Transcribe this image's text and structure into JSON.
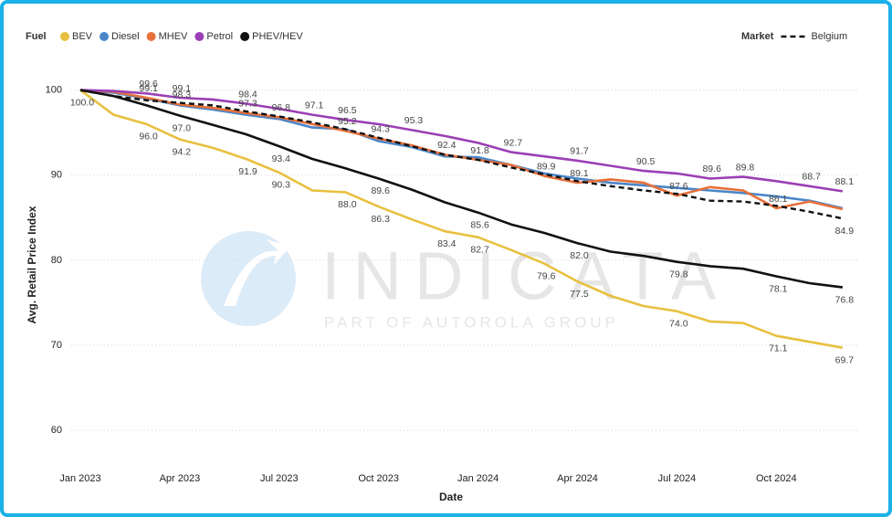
{
  "chart_data": {
    "type": "line",
    "xlabel": "Date",
    "ylabel": "Avg. Retail Price Index",
    "legend_titles": [
      "Fuel",
      "Market"
    ],
    "watermark": {
      "brand": "INDICATA",
      "tagline": "PART OF AUTOROLA GROUP"
    },
    "categories": [
      "Jan 2023",
      null,
      null,
      "Apr 2023",
      null,
      null,
      "Jul 2023",
      null,
      null,
      "Oct 2023",
      null,
      null,
      "Jan 2024",
      null,
      null,
      "Apr 2024",
      null,
      null,
      "Jul 2024",
      null,
      null,
      "Oct 2024",
      null,
      null
    ],
    "ylim": [
      57,
      102
    ],
    "yticks": [
      60,
      70,
      80,
      90,
      100
    ],
    "grid": true,
    "series": [
      {
        "name": "BEV",
        "color": "#e8c040",
        "legend_group": 0,
        "dash": false,
        "values": [
          100,
          97.1,
          96.0,
          94.2,
          93.2,
          91.9,
          90.3,
          88.2,
          88.0,
          86.3,
          84.8,
          83.4,
          82.7,
          81.2,
          79.6,
          77.5,
          75.8,
          74.6,
          74.0,
          72.8,
          72.6,
          71.1,
          70.4,
          69.7
        ],
        "value_labels": [
          "100.0",
          null,
          "96.0",
          "94.2",
          null,
          "91.9",
          "90.3",
          null,
          "88.0",
          "86.3",
          null,
          "83.4",
          "82.7",
          null,
          "79.6",
          "77.5",
          null,
          null,
          "74.0",
          null,
          null,
          "71.1",
          null,
          "69.7"
        ]
      },
      {
        "name": "Diesel",
        "color": "#4a86c8",
        "legend_group": 0,
        "dash": false,
        "values": [
          100,
          99.7,
          99.0,
          98.2,
          97.7,
          97.1,
          96.6,
          95.6,
          95.4,
          94.0,
          93.3,
          92.2,
          92.1,
          91.2,
          90.2,
          89.6,
          89.1,
          88.8,
          88.5,
          88.2,
          87.9,
          87.5,
          87.0,
          86.1
        ],
        "value_labels": [
          null,
          null,
          null,
          null,
          null,
          null,
          null,
          null,
          null,
          null,
          null,
          null,
          null,
          null,
          null,
          null,
          null,
          null,
          null,
          null,
          null,
          null,
          null,
          null
        ]
      },
      {
        "name": "MHEV",
        "color": "#e8703a",
        "legend_group": 0,
        "dash": false,
        "values": [
          100,
          99.8,
          99.1,
          98.3,
          97.9,
          97.3,
          96.8,
          96.0,
          95.2,
          94.3,
          93.5,
          92.4,
          91.8,
          91.2,
          89.9,
          89.1,
          89.5,
          89.1,
          87.6,
          88.6,
          88.2,
          86.1,
          86.9,
          86.0
        ],
        "value_labels": [
          null,
          null,
          "99.1",
          "98.3",
          null,
          "97.3",
          "96.8",
          null,
          "95.2",
          "94.3",
          null,
          "92.4",
          "91.8",
          null,
          "89.9",
          "89.1",
          null,
          null,
          "87.6",
          null,
          null,
          "86.1",
          null,
          null
        ]
      },
      {
        "name": "Petrol",
        "color": "#9b3fb5",
        "legend_group": 0,
        "dash": false,
        "values": [
          100,
          99.9,
          99.6,
          99.1,
          98.9,
          98.4,
          97.8,
          97.1,
          96.5,
          96.0,
          95.3,
          94.6,
          93.8,
          92.7,
          92.2,
          91.7,
          91.1,
          90.5,
          90.2,
          89.6,
          89.8,
          89.3,
          88.7,
          88.1
        ],
        "value_labels": [
          null,
          null,
          "99.6",
          "99.1",
          null,
          "98.4",
          null,
          "97.1",
          "96.5",
          null,
          "95.3",
          null,
          null,
          "92.7",
          null,
          "91.7",
          null,
          "90.5",
          null,
          "89.6",
          "89.8",
          null,
          "88.7",
          "88.1"
        ]
      },
      {
        "name": "PHEV/HEV",
        "color": "#111111",
        "legend_group": 0,
        "dash": false,
        "values": [
          100,
          99.3,
          98.2,
          97.0,
          95.9,
          94.8,
          93.4,
          91.9,
          90.8,
          89.6,
          88.3,
          86.8,
          85.6,
          84.2,
          83.2,
          82.0,
          81.0,
          80.5,
          79.8,
          79.3,
          79.0,
          78.1,
          77.3,
          76.8
        ],
        "value_labels": [
          null,
          null,
          null,
          "97.0",
          null,
          null,
          "93.4",
          null,
          null,
          "89.6",
          null,
          null,
          "85.6",
          null,
          null,
          "82.0",
          null,
          null,
          "79.8",
          null,
          null,
          "78.1",
          null,
          "76.8"
        ]
      },
      {
        "name": "Belgium",
        "color": "#111111",
        "legend_group": 1,
        "dash": true,
        "values": [
          100,
          99.3,
          98.8,
          98.5,
          98.2,
          97.5,
          96.9,
          96.2,
          95.4,
          94.4,
          93.4,
          92.4,
          91.8,
          90.9,
          90.1,
          89.3,
          88.7,
          88.2,
          87.8,
          87.0,
          86.9,
          86.4,
          85.7,
          84.9
        ],
        "value_labels": [
          null,
          null,
          null,
          null,
          null,
          null,
          null,
          null,
          null,
          null,
          null,
          null,
          null,
          null,
          null,
          null,
          null,
          null,
          null,
          null,
          null,
          null,
          null,
          "84.9"
        ]
      }
    ]
  }
}
